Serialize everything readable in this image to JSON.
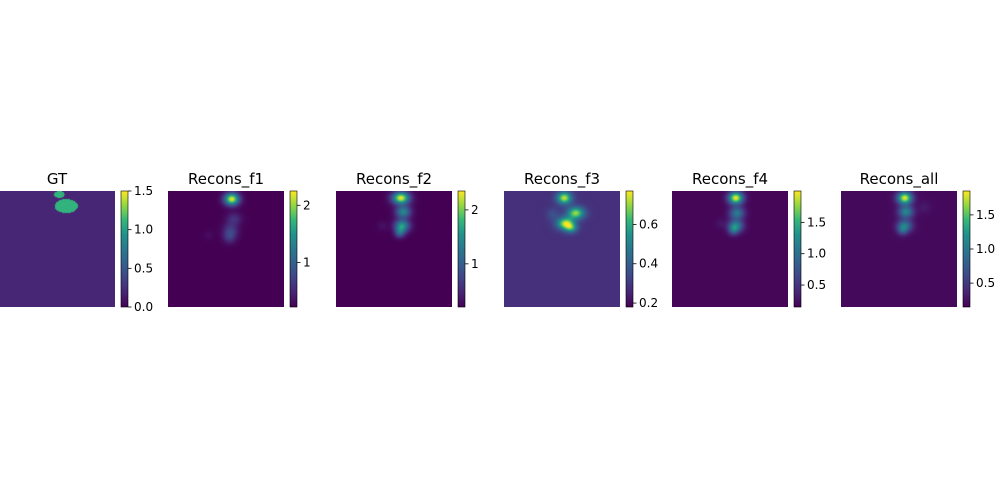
{
  "figure": {
    "background": "#ffffff"
  },
  "chart_data": [
    {
      "type": "heatmap",
      "title": "GT",
      "colormap": "viridis",
      "background_level": 0.2,
      "blobs": [
        {
          "cx": 0.52,
          "cy": 0.03,
          "rx": 0.045,
          "ry": 0.03,
          "v": 1.1,
          "shape": "ellipse"
        },
        {
          "cx": 0.58,
          "cy": 0.13,
          "rx": 0.1,
          "ry": 0.06,
          "v": 1.1,
          "shape": "ellipse"
        }
      ],
      "colorbar": {
        "vmin": 0.0,
        "vmax": 1.5,
        "ticks": [
          0.0,
          0.5,
          1.0,
          1.5
        ],
        "tick_labels": [
          "0.0",
          "0.5",
          "1.0",
          "1.5"
        ]
      }
    },
    {
      "type": "heatmap",
      "title": "Recons_f1",
      "colormap": "viridis",
      "background_level": 0.22,
      "blobs": [
        {
          "cx": 0.55,
          "cy": 0.07,
          "rx": 0.06,
          "ry": 0.05,
          "v": 1.98,
          "shape": "gauss"
        },
        {
          "cx": 0.57,
          "cy": 0.24,
          "rx": 0.06,
          "ry": 0.05,
          "v": 0.35,
          "shape": "gauss"
        },
        {
          "cx": 0.54,
          "cy": 0.34,
          "rx": 0.06,
          "ry": 0.06,
          "v": 0.45,
          "shape": "gauss"
        },
        {
          "cx": 0.53,
          "cy": 0.4,
          "rx": 0.05,
          "ry": 0.05,
          "v": 0.35,
          "shape": "gauss"
        },
        {
          "cx": 0.35,
          "cy": 0.38,
          "rx": 0.04,
          "ry": 0.04,
          "v": 0.08,
          "shape": "gauss"
        }
      ],
      "colorbar": {
        "vmin": 0.22,
        "vmax": 2.25,
        "ticks": [
          1,
          2
        ],
        "tick_labels": [
          "1",
          "2"
        ]
      }
    },
    {
      "type": "heatmap",
      "title": "Recons_f2",
      "colormap": "viridis",
      "background_level": 0.2,
      "blobs": [
        {
          "cx": 0.56,
          "cy": 0.06,
          "rx": 0.07,
          "ry": 0.05,
          "v": 2.1,
          "shape": "gauss"
        },
        {
          "cx": 0.58,
          "cy": 0.18,
          "rx": 0.06,
          "ry": 0.05,
          "v": 1.2,
          "shape": "gauss"
        },
        {
          "cx": 0.57,
          "cy": 0.3,
          "rx": 0.06,
          "ry": 0.05,
          "v": 1.4,
          "shape": "gauss"
        },
        {
          "cx": 0.55,
          "cy": 0.36,
          "rx": 0.04,
          "ry": 0.04,
          "v": 0.8,
          "shape": "gauss"
        },
        {
          "cx": 0.4,
          "cy": 0.3,
          "rx": 0.04,
          "ry": 0.04,
          "v": 0.12,
          "shape": "gauss"
        }
      ],
      "colorbar": {
        "vmin": 0.2,
        "vmax": 2.35,
        "ticks": [
          1,
          2
        ],
        "tick_labels": [
          "1",
          "2"
        ]
      }
    },
    {
      "type": "heatmap",
      "title": "Recons_f3",
      "colormap": "viridis",
      "background_level": 0.28,
      "blobs": [
        {
          "cx": 0.52,
          "cy": 0.06,
          "rx": 0.06,
          "ry": 0.05,
          "v": 0.45,
          "shape": "gauss"
        },
        {
          "cx": 0.62,
          "cy": 0.19,
          "rx": 0.07,
          "ry": 0.05,
          "v": 0.42,
          "shape": "gauss"
        },
        {
          "cx": 0.53,
          "cy": 0.28,
          "rx": 0.07,
          "ry": 0.05,
          "v": 0.45,
          "shape": "gauss"
        },
        {
          "cx": 0.58,
          "cy": 0.32,
          "rx": 0.05,
          "ry": 0.04,
          "v": 0.25,
          "shape": "gauss"
        },
        {
          "cx": 0.42,
          "cy": 0.2,
          "rx": 0.05,
          "ry": 0.05,
          "v": 0.08,
          "shape": "gauss"
        }
      ],
      "colorbar": {
        "vmin": 0.18,
        "vmax": 0.77,
        "ticks": [
          0.2,
          0.4,
          0.6
        ],
        "tick_labels": [
          "0.2",
          "0.4",
          "0.6"
        ]
      }
    },
    {
      "type": "heatmap",
      "title": "Recons_f4",
      "colormap": "viridis",
      "background_level": 0.18,
      "blobs": [
        {
          "cx": 0.55,
          "cy": 0.06,
          "rx": 0.06,
          "ry": 0.05,
          "v": 1.8,
          "shape": "gauss"
        },
        {
          "cx": 0.56,
          "cy": 0.19,
          "rx": 0.06,
          "ry": 0.05,
          "v": 0.9,
          "shape": "gauss"
        },
        {
          "cx": 0.55,
          "cy": 0.3,
          "rx": 0.06,
          "ry": 0.05,
          "v": 1.0,
          "shape": "gauss"
        },
        {
          "cx": 0.53,
          "cy": 0.34,
          "rx": 0.04,
          "ry": 0.04,
          "v": 0.5,
          "shape": "gauss"
        },
        {
          "cx": 0.42,
          "cy": 0.28,
          "rx": 0.04,
          "ry": 0.04,
          "v": 0.1,
          "shape": "gauss"
        }
      ],
      "colorbar": {
        "vmin": 0.15,
        "vmax": 2.0,
        "ticks": [
          0.5,
          1.0,
          1.5
        ],
        "tick_labels": [
          "0.5",
          "1.0",
          "1.5"
        ]
      }
    },
    {
      "type": "heatmap",
      "title": "Recons_all",
      "colormap": "viridis",
      "background_level": 0.2,
      "blobs": [
        {
          "cx": 0.55,
          "cy": 0.06,
          "rx": 0.06,
          "ry": 0.05,
          "v": 1.6,
          "shape": "gauss"
        },
        {
          "cx": 0.56,
          "cy": 0.18,
          "rx": 0.06,
          "ry": 0.05,
          "v": 0.9,
          "shape": "gauss"
        },
        {
          "cx": 0.55,
          "cy": 0.3,
          "rx": 0.06,
          "ry": 0.05,
          "v": 0.8,
          "shape": "gauss"
        },
        {
          "cx": 0.53,
          "cy": 0.34,
          "rx": 0.04,
          "ry": 0.04,
          "v": 0.4,
          "shape": "gauss"
        },
        {
          "cx": 0.72,
          "cy": 0.14,
          "rx": 0.05,
          "ry": 0.05,
          "v": 0.1,
          "shape": "gauss"
        }
      ],
      "colorbar": {
        "vmin": 0.15,
        "vmax": 1.85,
        "ticks": [
          0.5,
          1.0,
          1.5
        ],
        "tick_labels": [
          "0.5",
          "1.0",
          "1.5"
        ]
      }
    }
  ]
}
